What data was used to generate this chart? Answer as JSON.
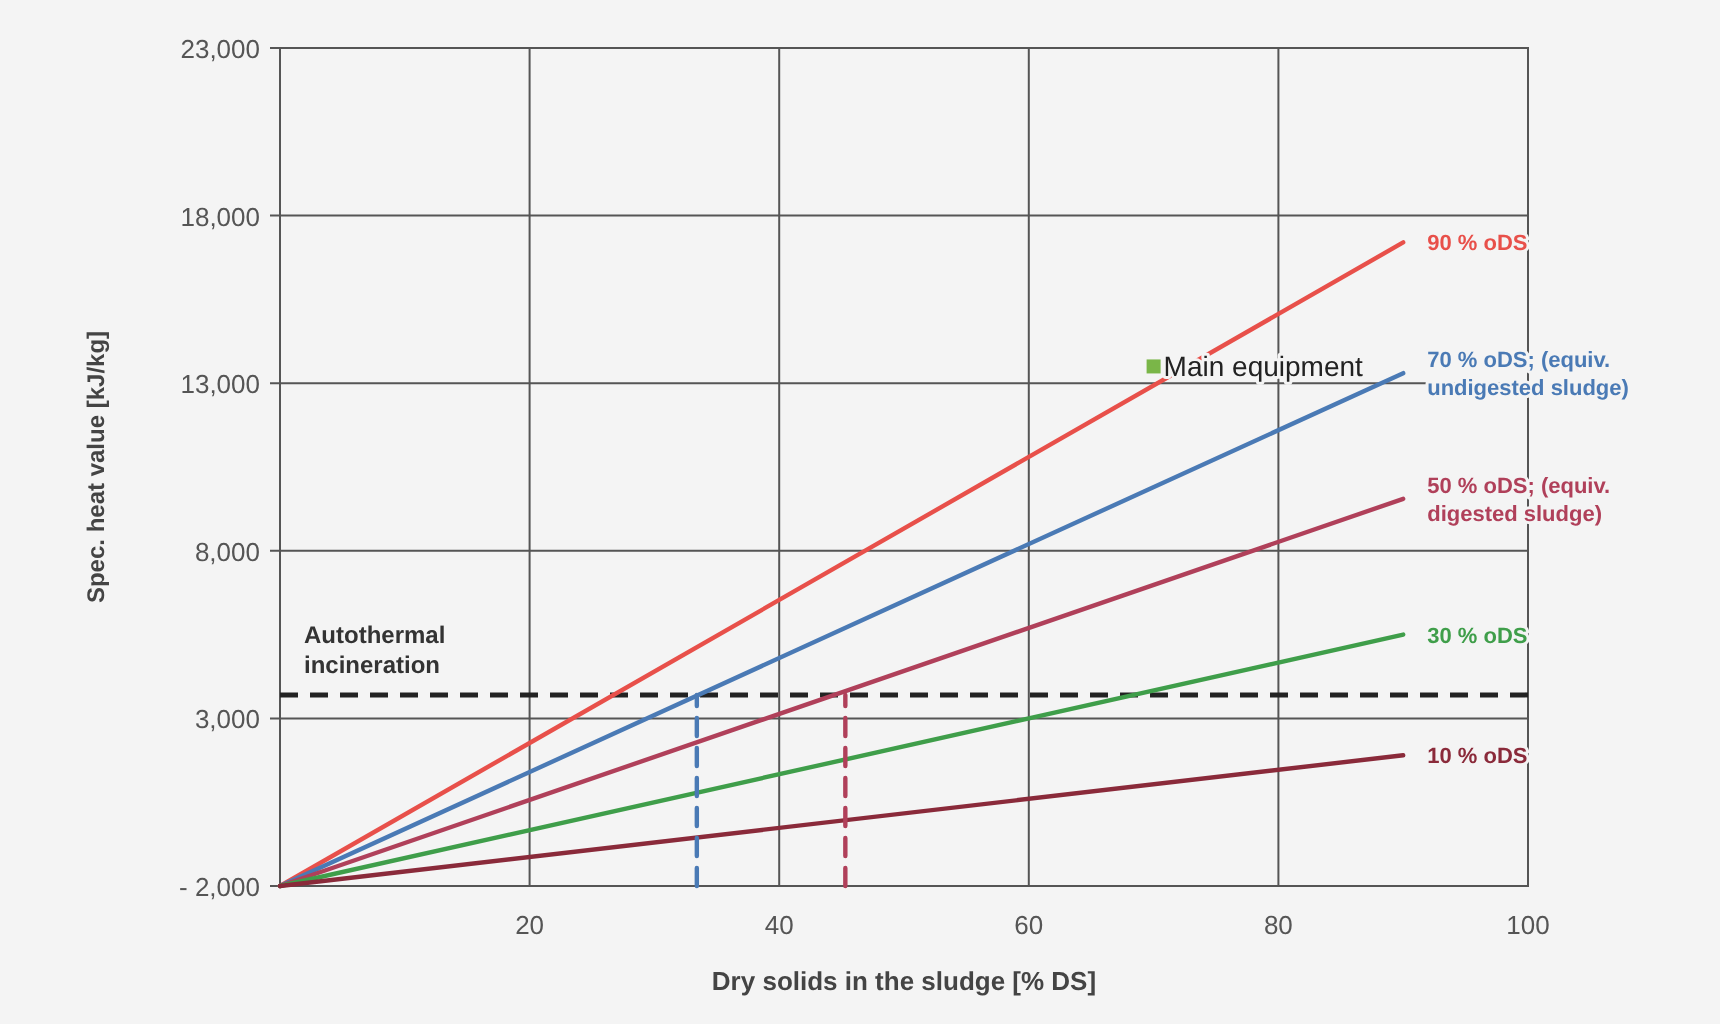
{
  "chart_data": {
    "type": "line",
    "xlabel": "Dry solids in the sludge [% DS]",
    "ylabel": "Spec. heat value [kJ/kg]",
    "xlim": [
      0,
      100
    ],
    "xticks": [
      20,
      40,
      60,
      80,
      100
    ],
    "ylim": [
      -2000,
      23000
    ],
    "yticks": [
      {
        "value": -2000,
        "label": "- 2,000"
      },
      {
        "value": 3000,
        "label": "3,000"
      },
      {
        "value": 8000,
        "label": "8,000"
      },
      {
        "value": 13000,
        "label": "13,000"
      },
      {
        "value": 18000,
        "label": "18,000"
      },
      {
        "value": 23000,
        "label": "23,000"
      }
    ],
    "grid": true,
    "line_style": "solid",
    "marker": "none",
    "series": [
      {
        "name": "90 % oDS",
        "color": "#e8504a",
        "x": [
          0,
          90
        ],
        "values": [
          -2000,
          17200
        ]
      },
      {
        "name": "70 % oDS; (equiv. undigested sludge)",
        "color": "#4a7ab5",
        "x": [
          0,
          90
        ],
        "values": [
          -2000,
          13300
        ]
      },
      {
        "name": "50 % oDS; (equiv. digested sludge)",
        "color": "#b0405a",
        "x": [
          0,
          90
        ],
        "values": [
          -2000,
          9550
        ]
      },
      {
        "name": "30 % oDS",
        "color": "#3f9e4a",
        "x": [
          0,
          90
        ],
        "values": [
          -2000,
          5500
        ]
      },
      {
        "name": "10 % oDS",
        "color": "#8a2a3a",
        "x": [
          0,
          90
        ],
        "values": [
          -2000,
          1900
        ]
      },
      {
        "color": "#4a7ab5",
        "line_style": "dashed",
        "x": [
          33.4,
          33.4
        ],
        "values": [
          -2000,
          3700
        ]
      },
      {
        "color": "#b0405a",
        "line_style": "dashed",
        "x": [
          45.3,
          45.3
        ],
        "values": [
          -2000,
          3700
        ]
      },
      {
        "type": "scatter",
        "color": "#7ab648",
        "marker": "square",
        "x": [
          70
        ],
        "values": [
          13500
        ]
      }
    ],
    "annotations": [
      {
        "text": "Main equipment",
        "x": 70,
        "y": 13500
      }
    ],
    "ref_lines": [
      {
        "axis": "y",
        "value": 3700,
        "label": "Autothermal incineration",
        "color": "#222222",
        "line_style": "dashed"
      }
    ]
  }
}
